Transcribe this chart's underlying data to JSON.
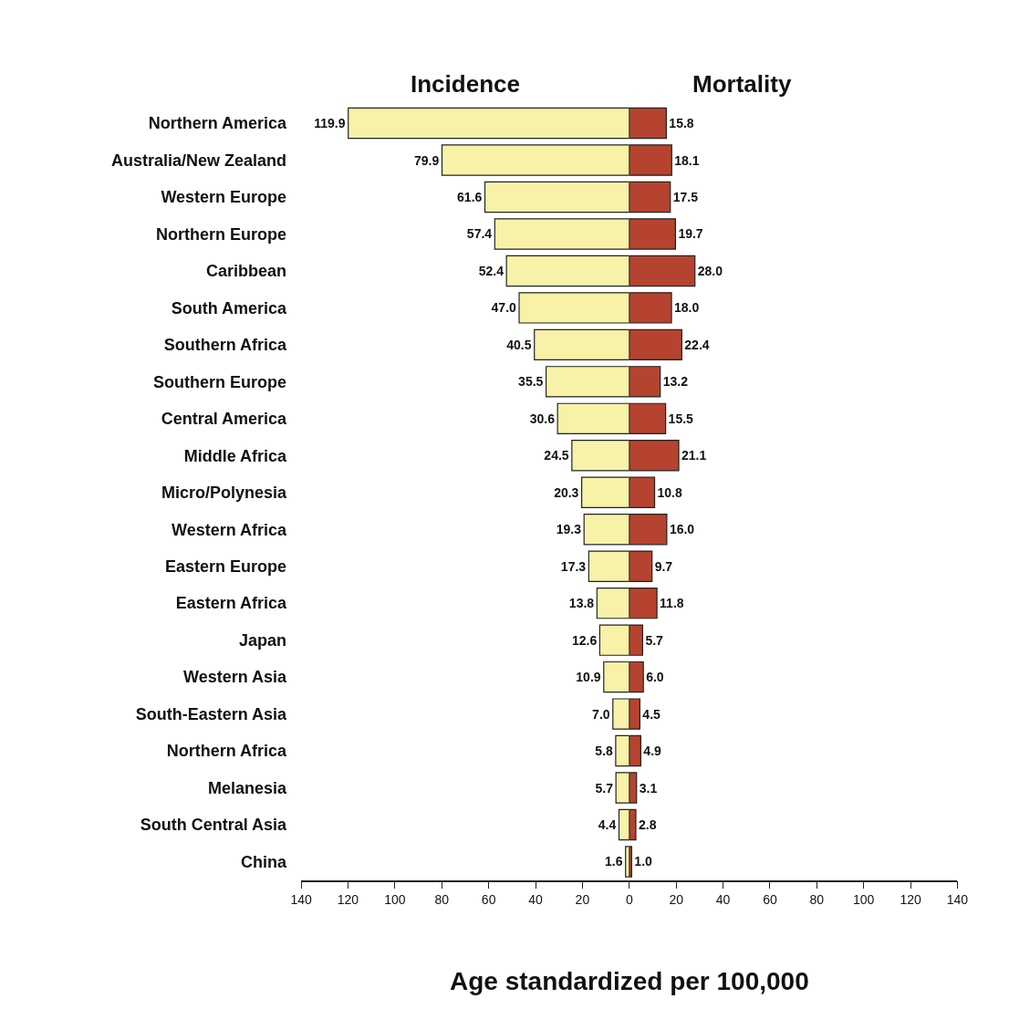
{
  "chart_data": [
    {
      "type": "bar",
      "orientation": "horizontal",
      "title": "Incidence",
      "xlabel": "Age standardized per 100,000",
      "categories": [
        "Northern America",
        "Australia/New Zealand",
        "Western Europe",
        "Northern Europe",
        "Caribbean",
        "South America",
        "Southern Africa",
        "Southern Europe",
        "Central America",
        "Middle Africa",
        "Micro/Polynesia",
        "Western Africa",
        "Eastern Europe",
        "Eastern Africa",
        "Japan",
        "Western Asia",
        "South-Eastern Asia",
        "Northern Africa",
        "Melanesia",
        "South Central Asia",
        "China"
      ],
      "values": [
        119.9,
        79.9,
        61.6,
        57.4,
        52.4,
        47.0,
        40.5,
        35.5,
        30.6,
        24.5,
        20.3,
        19.3,
        17.3,
        13.8,
        12.6,
        10.9,
        7.0,
        5.8,
        5.7,
        4.4,
        1.6
      ],
      "value_labels": [
        "119.9",
        "79.9",
        "61.6",
        "57.4",
        "52.4",
        "47.0",
        "40.5",
        "35.5",
        "30.6",
        "24.5",
        "20.3",
        "19.3",
        "17.3",
        "13.8",
        "12.6",
        "10.9",
        "7.0",
        "5.8",
        "5.7",
        "4.4",
        "1.6"
      ],
      "color": "#f8f2a8",
      "xlim": [
        140,
        0
      ],
      "xticks": [
        140,
        120,
        100,
        80,
        60,
        40,
        20,
        {
          "value": 0,
          "label": null
        }
      ]
    },
    {
      "type": "bar",
      "orientation": "horizontal",
      "title": "Mortality",
      "categories": [
        "Northern America",
        "Australia/New Zealand",
        "Western Europe",
        "Northern Europe",
        "Caribbean",
        "South America",
        "Southern Africa",
        "Southern Europe",
        "Central America",
        "Middle Africa",
        "Micro/Polynesia",
        "Western Africa",
        "Eastern Europe",
        "Eastern Africa",
        "Japan",
        "Western Asia",
        "South-Eastern Asia",
        "Northern Africa",
        "Melanesia",
        "South Central Asia",
        "China"
      ],
      "values": [
        15.8,
        18.1,
        17.5,
        19.7,
        28.0,
        18.0,
        22.4,
        13.2,
        15.5,
        21.1,
        10.8,
        16.0,
        9.7,
        11.8,
        5.7,
        6.0,
        4.5,
        4.9,
        3.1,
        2.8,
        1.0
      ],
      "value_labels": [
        "15.8",
        "18.1",
        "17.5",
        "19.7",
        "28.0",
        "18.0",
        "22.4",
        "13.2",
        "15.5",
        "21.1",
        "10.8",
        "16.0",
        "9.7",
        "11.8",
        "5.7",
        "6.0",
        "4.5",
        "4.9",
        "3.1",
        "2.8",
        "1.0"
      ],
      "color": "#b5432f",
      "xlim": [
        0,
        140
      ],
      "xticks": [
        0,
        20,
        40,
        60,
        80,
        100,
        120,
        140
      ],
      "tick_labels": "x"
    }
  ]
}
